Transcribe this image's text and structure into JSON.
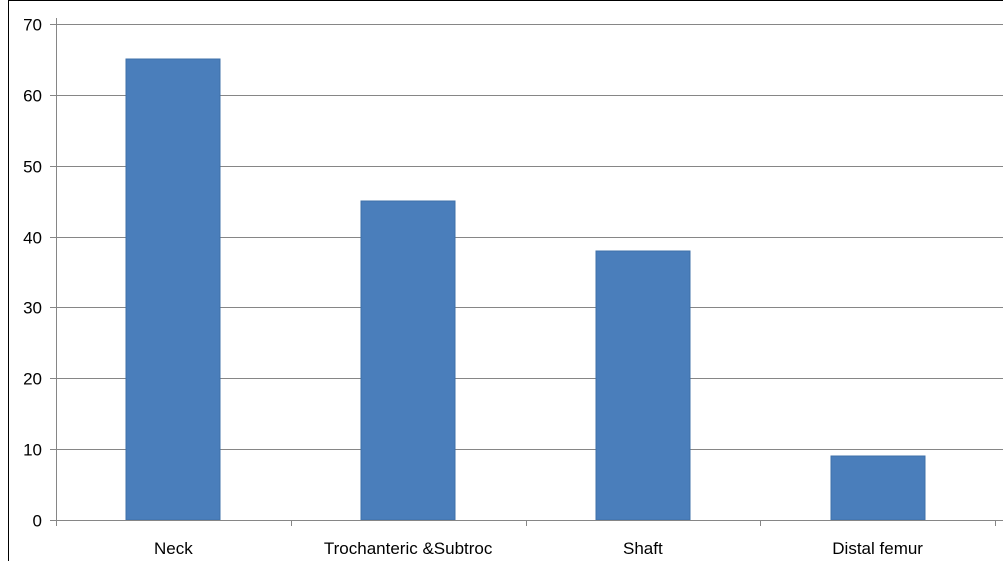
{
  "chart_data": {
    "type": "bar",
    "categories": [
      "Neck",
      "Trochanteric &Subtroc",
      "Shaft",
      "Distal femur"
    ],
    "values": [
      65,
      45,
      38,
      9
    ],
    "title": "",
    "xlabel": "",
    "ylabel": "",
    "ylim": [
      0,
      70
    ],
    "yticks": [
      0,
      10,
      20,
      30,
      40,
      50,
      60,
      70
    ],
    "grid": true,
    "legend": "none",
    "colors": {
      "bar": "#4a7ebb",
      "bar_edge": "#3f70aa",
      "grid": "#868686"
    }
  }
}
